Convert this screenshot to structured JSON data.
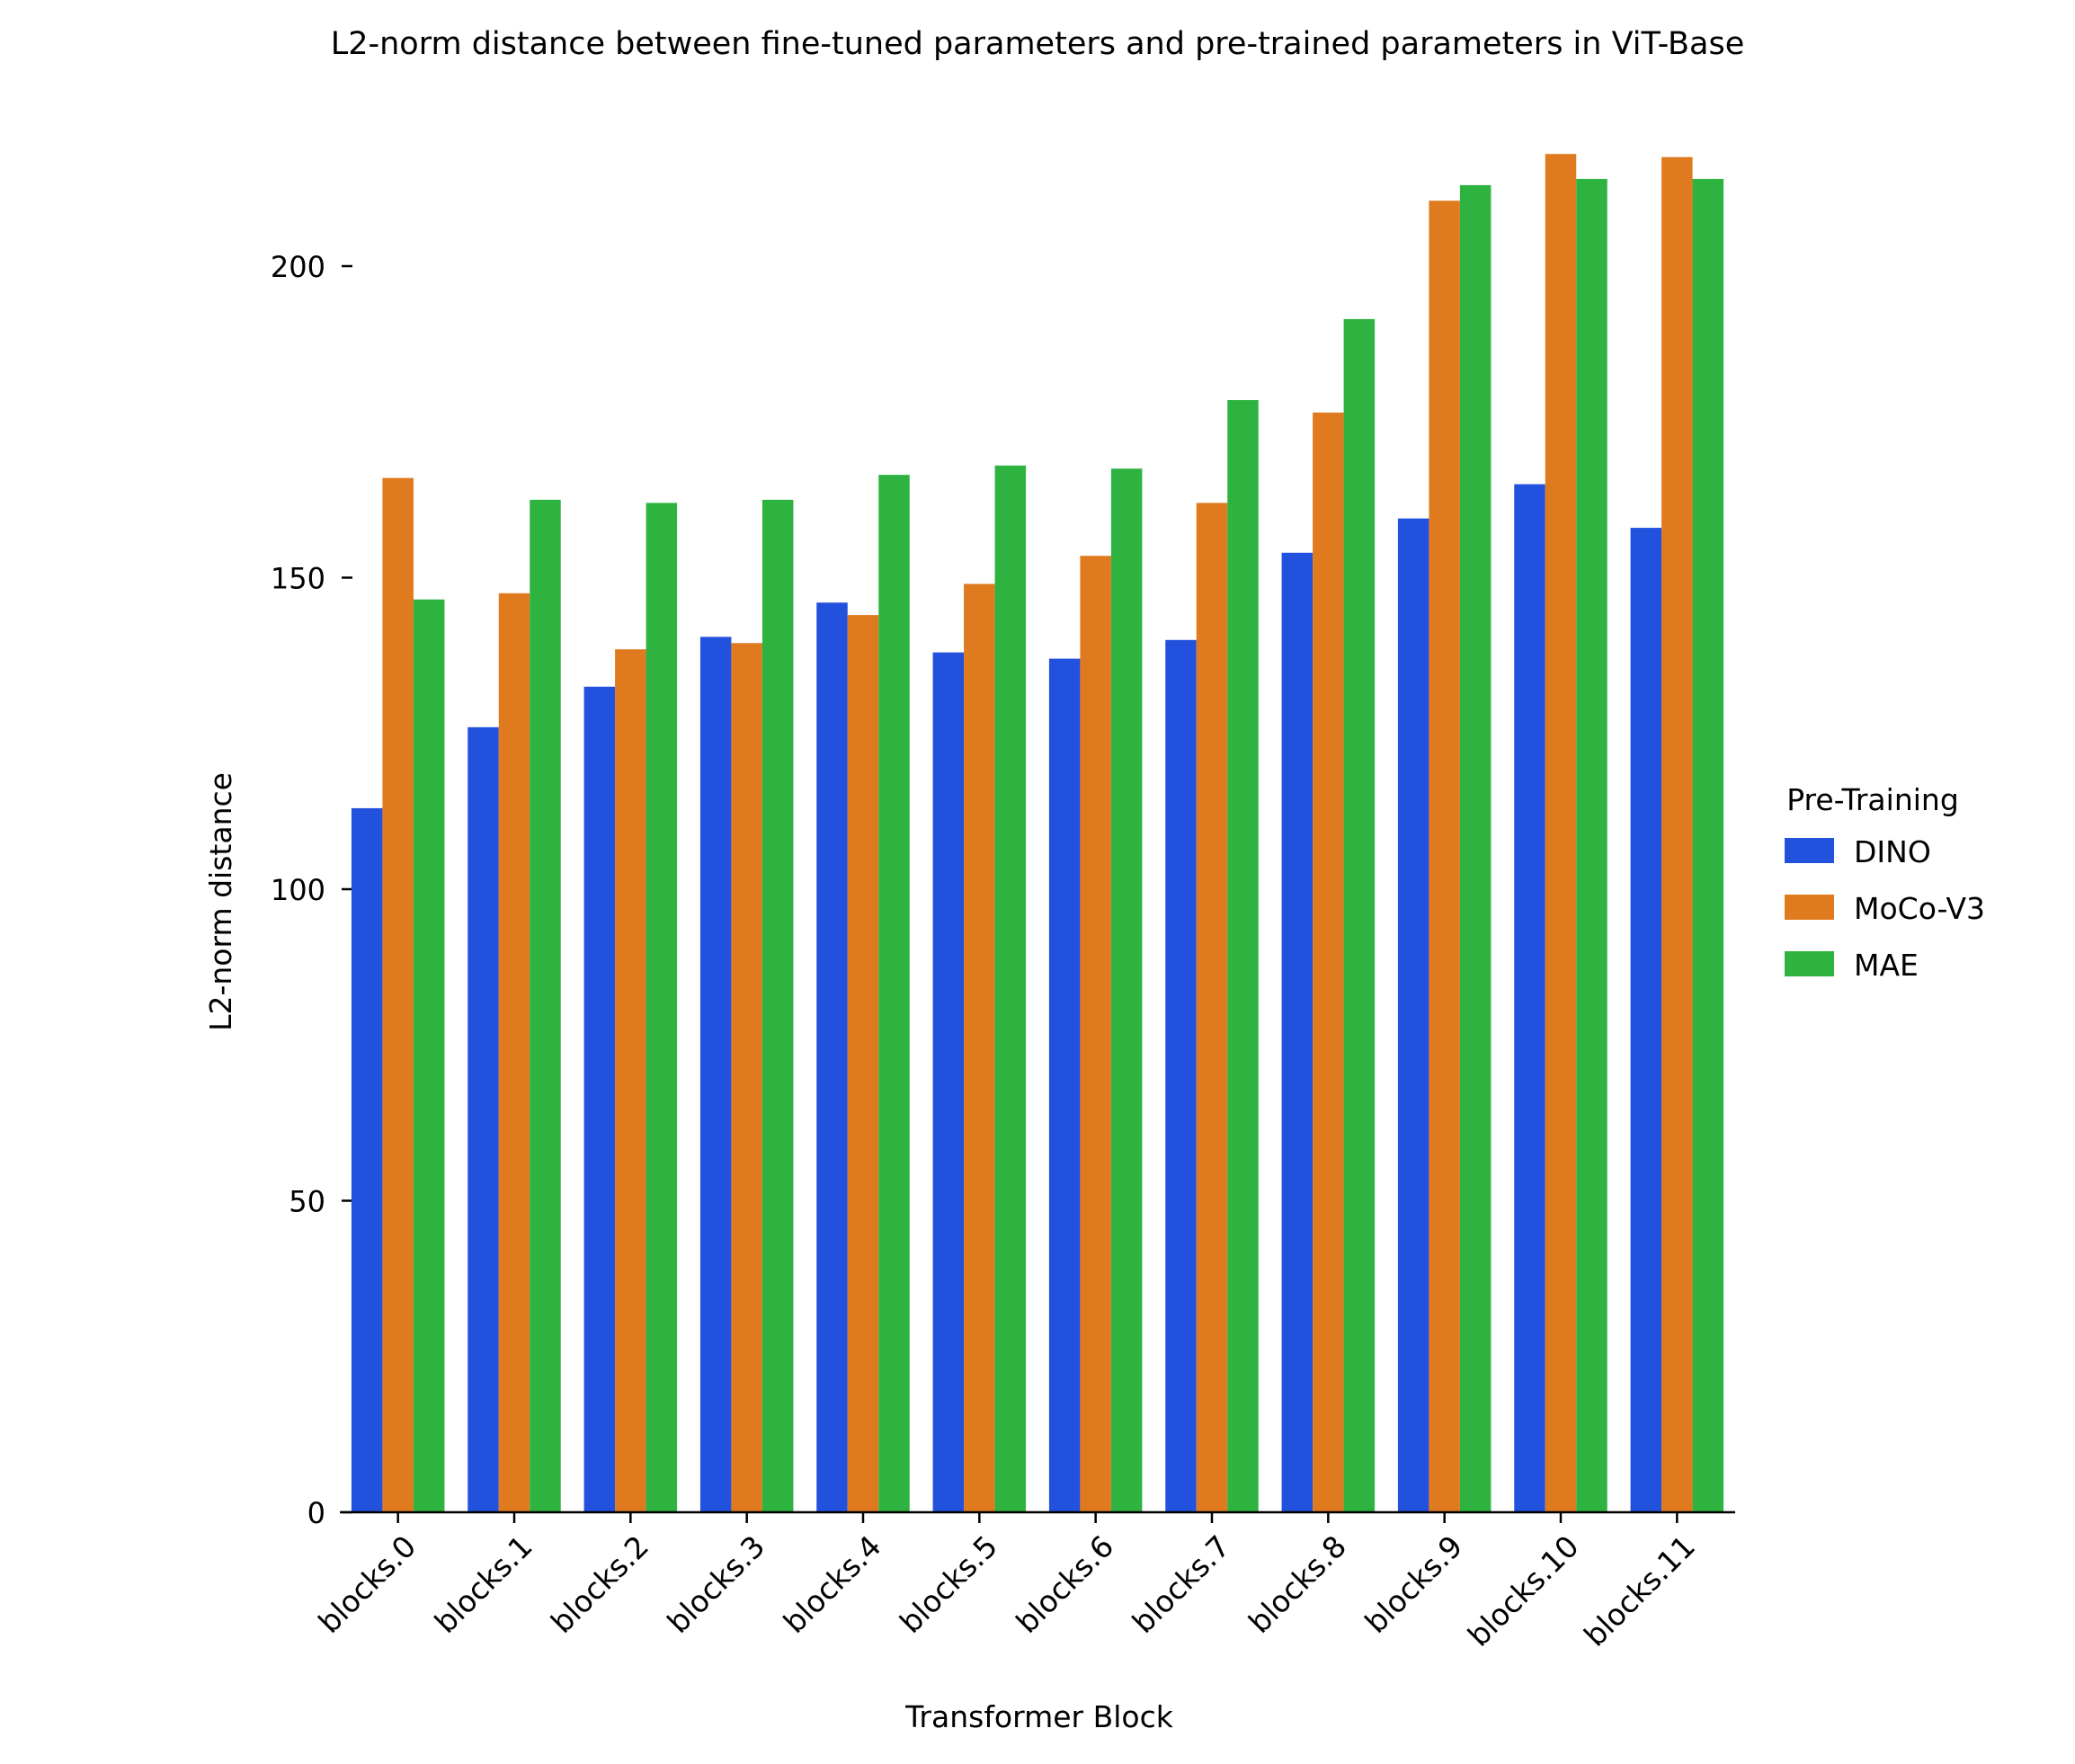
{
  "chart_data": {
    "type": "bar",
    "title": "L2-norm distance between fine-tuned parameters and pre-trained parameters in ViT-Base",
    "xlabel": "Transformer Block",
    "ylabel": "L2-norm distance",
    "ylim": [
      0,
      220
    ],
    "yticks": [
      "0",
      "50",
      "100",
      "150",
      "200"
    ],
    "grid": false,
    "legend": {
      "title": "Pre-Training",
      "placement": "right"
    },
    "categories": [
      "blocks.0",
      "blocks.1",
      "blocks.2",
      "blocks.3",
      "blocks.4",
      "blocks.5",
      "blocks.6",
      "blocks.7",
      "blocks.8",
      "blocks.9",
      "blocks.10",
      "blocks.11"
    ],
    "series": [
      {
        "name": "DINO",
        "color": "#2251dd",
        "values": [
          113,
          126,
          132.5,
          140.5,
          146,
          138,
          137,
          140,
          154,
          159.5,
          165,
          158
        ]
      },
      {
        "name": "MoCo-V3",
        "color": "#e07a1f",
        "values": [
          166,
          147.5,
          138.5,
          139.5,
          144,
          149,
          153.5,
          162,
          176.5,
          210.5,
          218,
          217.5
        ]
      },
      {
        "name": "MAE",
        "color": "#2fb340",
        "values": [
          146.5,
          162.5,
          162,
          162.5,
          166.5,
          168,
          167.5,
          178.5,
          191.5,
          213,
          214,
          214
        ]
      }
    ]
  }
}
